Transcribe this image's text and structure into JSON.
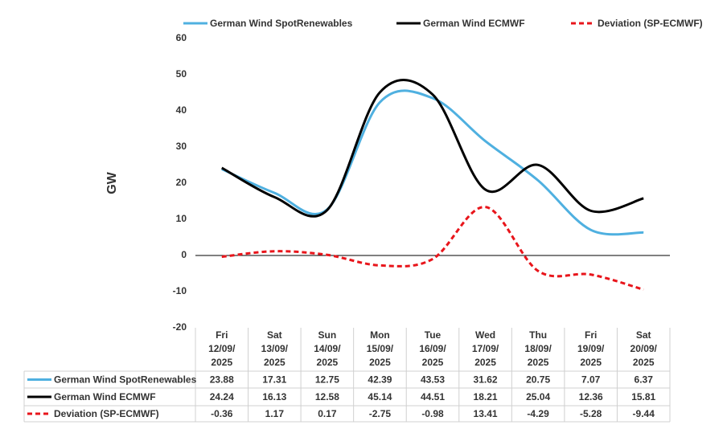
{
  "chart_data": {
    "type": "line",
    "y_label": "GW",
    "categories": [
      [
        "Fri",
        "12/09/",
        "2025"
      ],
      [
        "Sat",
        "13/09/",
        "2025"
      ],
      [
        "Sun",
        "14/09/",
        "2025"
      ],
      [
        "Mon",
        "15/09/",
        "2025"
      ],
      [
        "Tue",
        "16/09/",
        "2025"
      ],
      [
        "Wed",
        "17/09/",
        "2025"
      ],
      [
        "Thu",
        "18/09/",
        "2025"
      ],
      [
        "Fri",
        "19/09/",
        "2025"
      ],
      [
        "Sat",
        "20/09/",
        "2025"
      ]
    ],
    "series": [
      {
        "name": "German Wind SpotRenewables",
        "color": "#4fb0e0",
        "dash": false,
        "values": [
          23.88,
          17.31,
          12.75,
          42.39,
          43.53,
          31.62,
          20.75,
          7.07,
          6.37
        ]
      },
      {
        "name": "German Wind ECMWF",
        "color": "#000000",
        "dash": false,
        "values": [
          24.24,
          16.13,
          12.58,
          45.14,
          44.51,
          18.21,
          25.04,
          12.36,
          15.81
        ]
      },
      {
        "name": "Deviation (SP-ECMWF)",
        "color": "#e8151b",
        "dash": true,
        "values": [
          -0.36,
          1.17,
          0.17,
          -2.75,
          -0.98,
          13.41,
          -4.29,
          -5.28,
          -9.44
        ]
      }
    ],
    "ylim": [
      -20,
      60
    ],
    "yticks": [
      -20,
      -10,
      0,
      10,
      20,
      30,
      40,
      50,
      60
    ],
    "grid": false,
    "data_table": true
  }
}
